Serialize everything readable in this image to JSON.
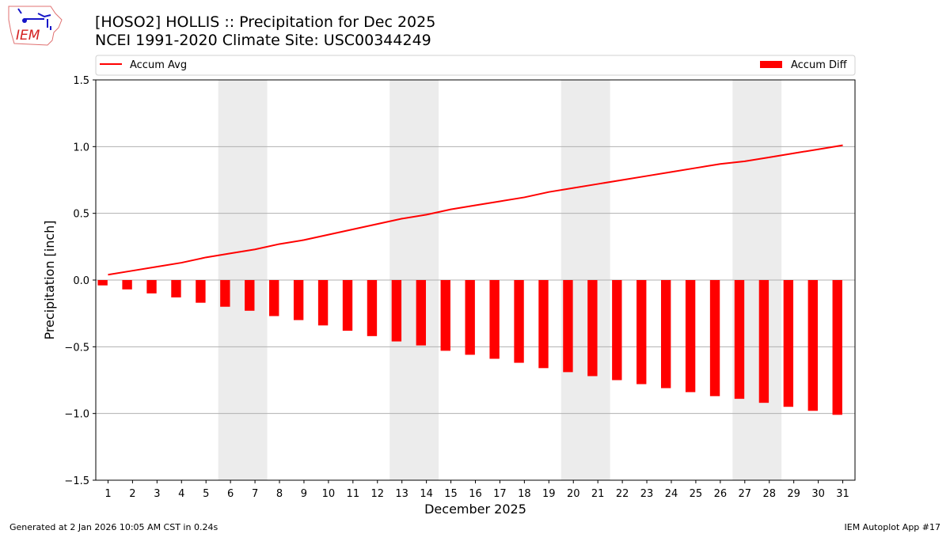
{
  "title_line1": "[HOSO2] HOLLIS :: Precipitation for Dec 2025",
  "title_line2": "NCEI 1991-2020 Climate Site: USC00344249",
  "logo_text": "IEM",
  "footer_left": "Generated at 2 Jan 2026 10:05 AM CST in 0.24s",
  "footer_right": "IEM Autoplot App #17",
  "colors": {
    "series": "#ff0000",
    "weekend": "#ececec",
    "grid": "#b0b0b0"
  },
  "chart_data": {
    "type": "bar",
    "xlabel": "December 2025",
    "ylabel": "Precipitation [inch]",
    "ylim": [
      -1.5,
      1.5
    ],
    "yticks": [
      "1.5",
      "1.0",
      "0.5",
      "0.0",
      "−0.5",
      "−1.0",
      "−1.5"
    ],
    "ytick_values": [
      1.5,
      1.0,
      0.5,
      0.0,
      -0.5,
      -1.0,
      -1.5
    ],
    "grid": true,
    "legend_placement": "top",
    "weekends": [
      [
        6,
        7
      ],
      [
        13,
        14
      ],
      [
        20,
        21
      ],
      [
        27,
        28
      ]
    ],
    "categories": [
      1,
      2,
      3,
      4,
      5,
      6,
      7,
      8,
      9,
      10,
      11,
      12,
      13,
      14,
      15,
      16,
      17,
      18,
      19,
      20,
      21,
      22,
      23,
      24,
      25,
      26,
      27,
      28,
      29,
      30,
      31
    ],
    "series": [
      {
        "name": "Accum Avg",
        "type": "line",
        "values": [
          0.04,
          0.07,
          0.1,
          0.13,
          0.17,
          0.2,
          0.23,
          0.27,
          0.3,
          0.34,
          0.38,
          0.42,
          0.46,
          0.49,
          0.53,
          0.56,
          0.59,
          0.62,
          0.66,
          0.69,
          0.72,
          0.75,
          0.78,
          0.81,
          0.84,
          0.87,
          0.89,
          0.92,
          0.95,
          0.98,
          1.01
        ]
      },
      {
        "name": "Accum Diff",
        "type": "bar",
        "values": [
          -0.04,
          -0.07,
          -0.1,
          -0.13,
          -0.17,
          -0.2,
          -0.23,
          -0.27,
          -0.3,
          -0.34,
          -0.38,
          -0.42,
          -0.46,
          -0.49,
          -0.53,
          -0.56,
          -0.59,
          -0.62,
          -0.66,
          -0.69,
          -0.72,
          -0.75,
          -0.78,
          -0.81,
          -0.84,
          -0.87,
          -0.89,
          -0.92,
          -0.95,
          -0.98,
          -1.01
        ]
      }
    ]
  }
}
